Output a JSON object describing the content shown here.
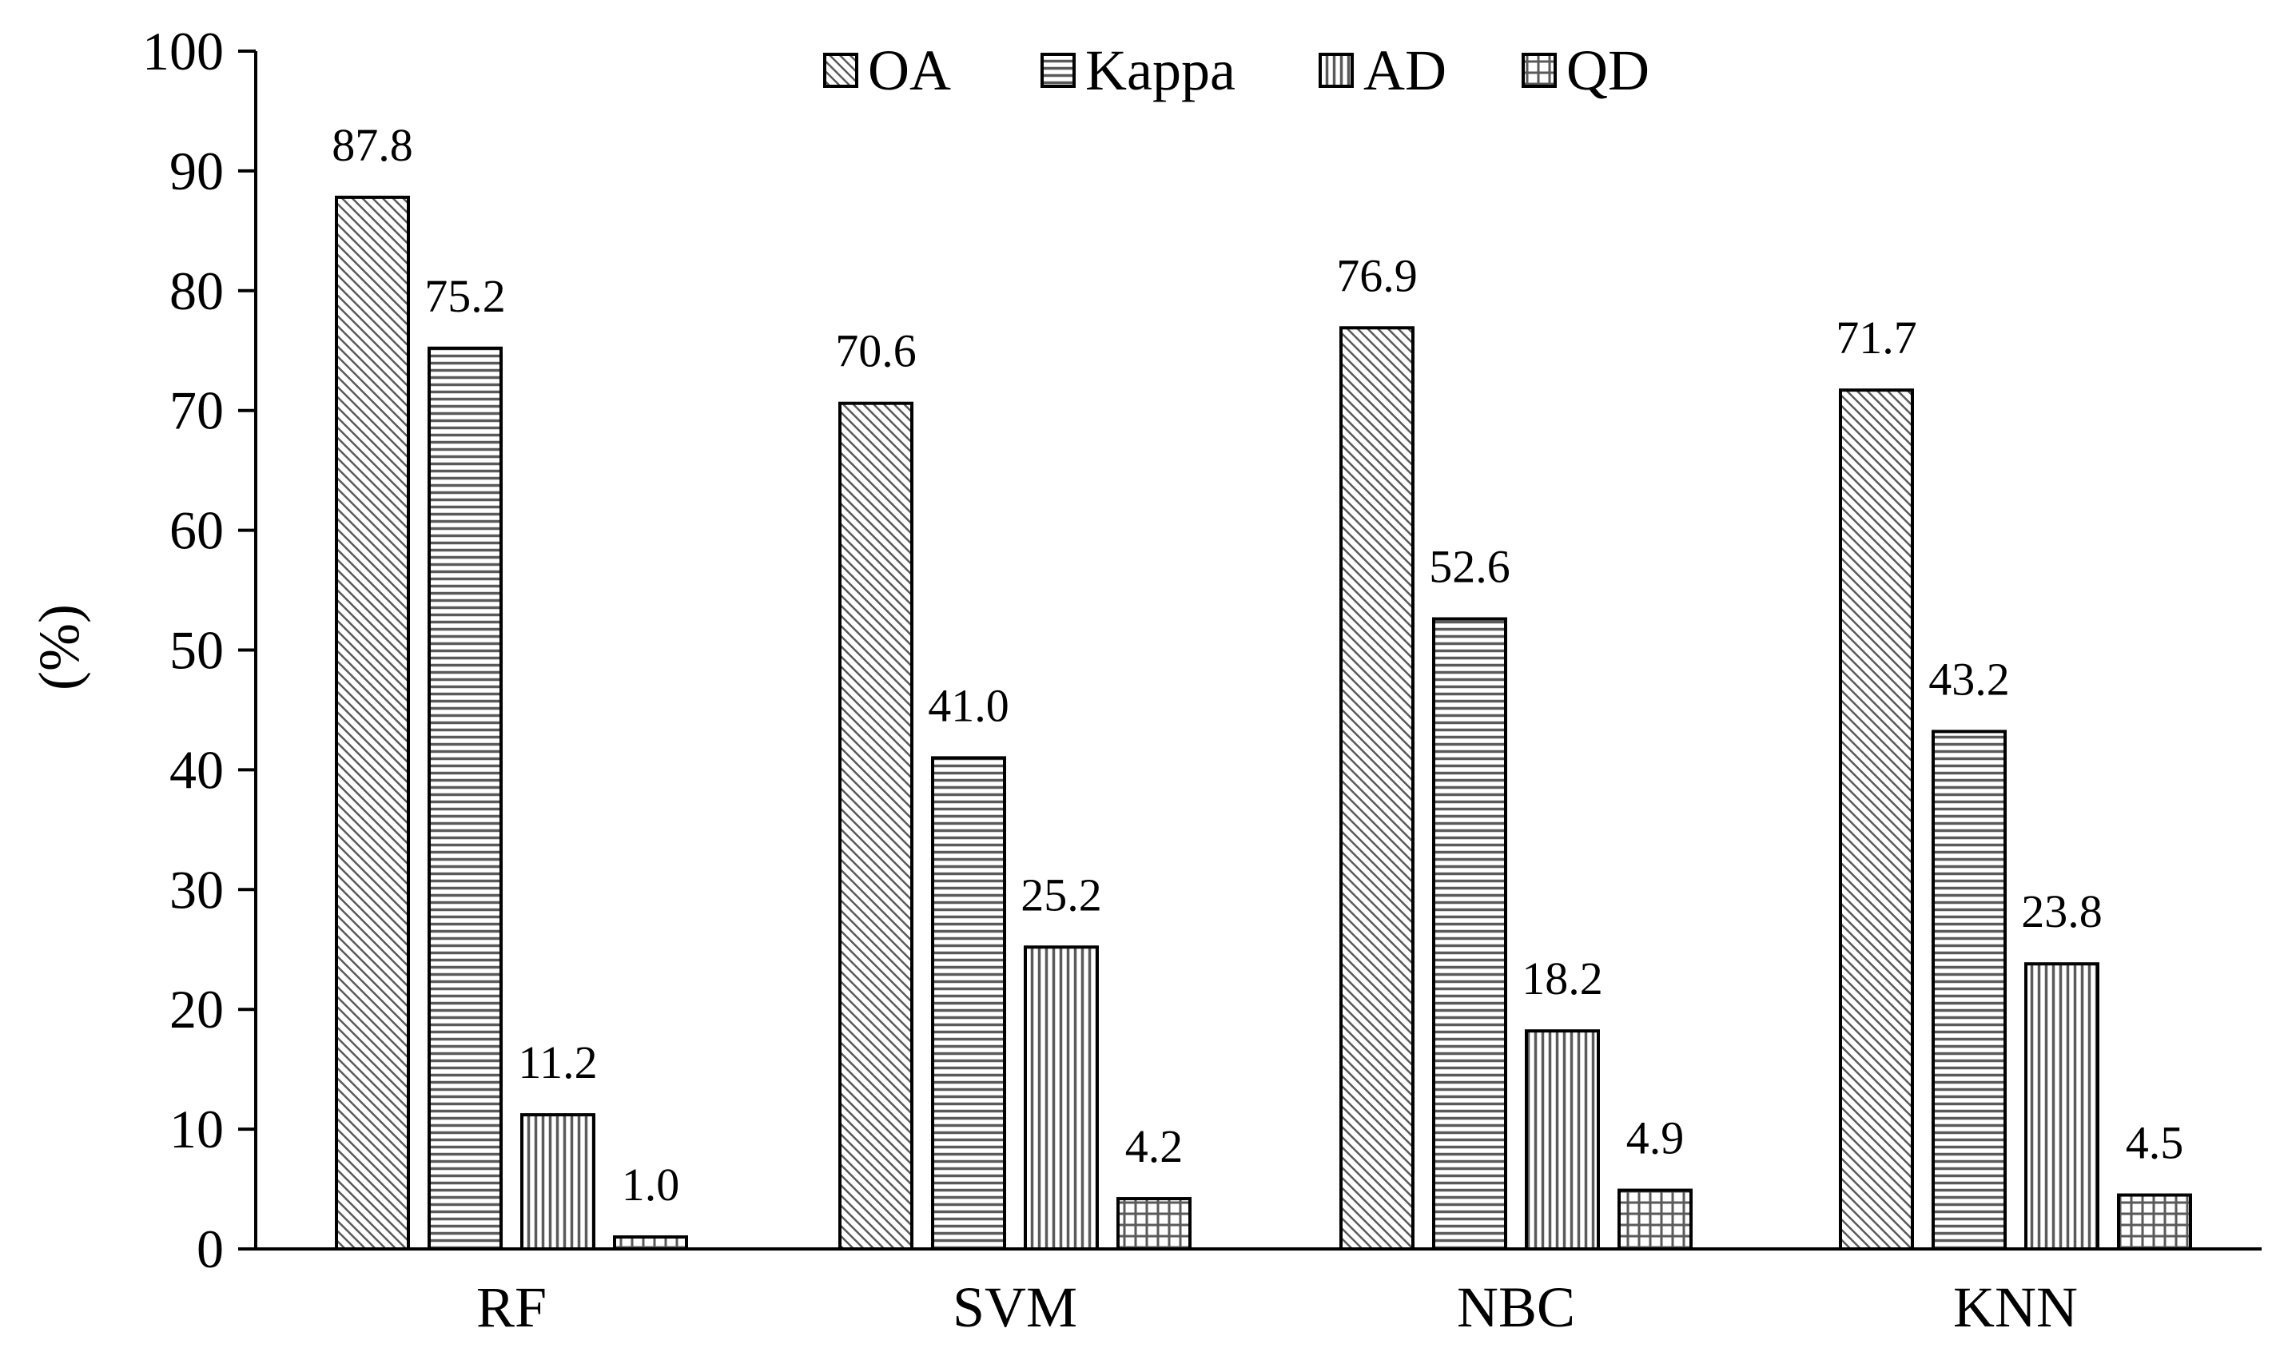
{
  "chart_data": {
    "type": "bar",
    "title": "",
    "xlabel": "",
    "ylabel": "(%)",
    "ylim": [
      0,
      100
    ],
    "yticks": [
      0,
      10,
      20,
      30,
      40,
      50,
      60,
      70,
      80,
      90,
      100
    ],
    "categories": [
      "RF",
      "SVM",
      "NBC",
      "KNN"
    ],
    "series": [
      {
        "name": "OA",
        "pattern": "diagonal",
        "values": [
          87.8,
          70.6,
          76.9,
          71.7
        ],
        "labels": [
          "87.8",
          "70.6",
          "76.9",
          "71.7"
        ]
      },
      {
        "name": "Kappa",
        "pattern": "horizontal",
        "values": [
          75.2,
          41.0,
          52.6,
          43.2
        ],
        "labels": [
          "75.2",
          "41.0",
          "52.6",
          "43.2"
        ]
      },
      {
        "name": "AD",
        "pattern": "vertical",
        "values": [
          11.2,
          25.2,
          18.2,
          23.8
        ],
        "labels": [
          "11.2",
          "25.2",
          "18.2",
          "23.8"
        ]
      },
      {
        "name": "QD",
        "pattern": "grid",
        "values": [
          1.0,
          4.2,
          4.9,
          4.5
        ],
        "labels": [
          "1.0",
          "4.2",
          "4.9",
          "4.5"
        ]
      }
    ],
    "legend_position": "top",
    "grid": false
  },
  "colors": {
    "background": "#ffffff",
    "ink": "#000000",
    "bar_fill": "#ffffff",
    "hatch": "#555555"
  }
}
